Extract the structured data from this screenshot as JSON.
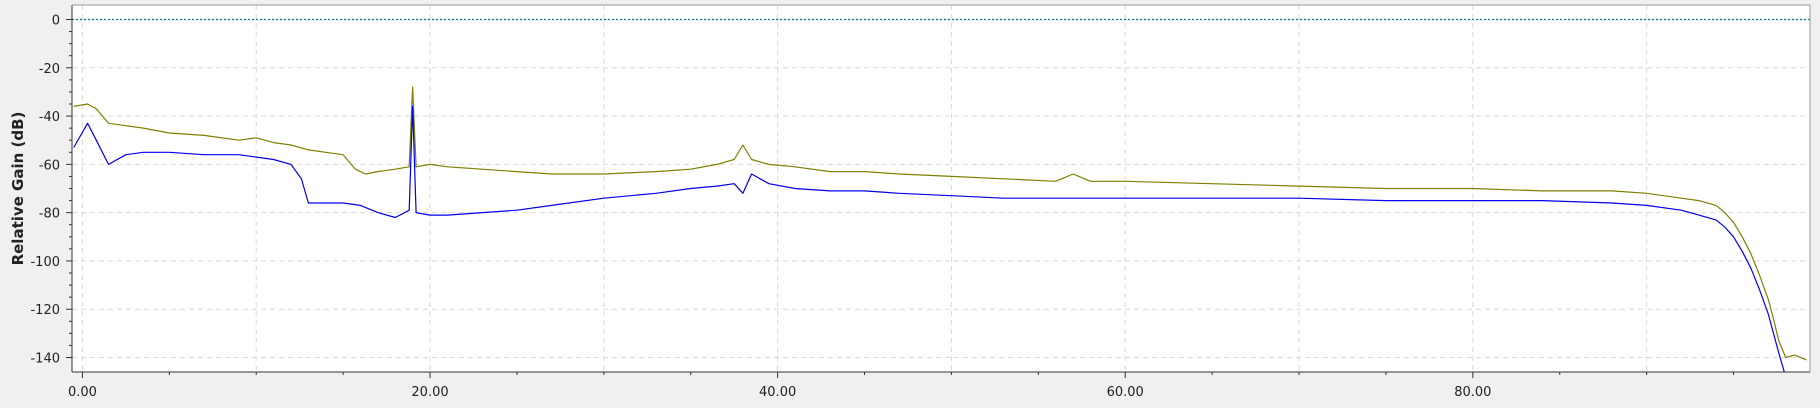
{
  "colors": {
    "background": "#f0f0f0",
    "plot_background": "#ffffff",
    "grid": "#d9d9d9",
    "series_blue": "#0000ee",
    "series_olive": "#7f7f00",
    "reference_line": "#008080"
  },
  "chart_data": {
    "type": "line",
    "title": "",
    "xlabel": "",
    "ylabel": "Relative Gain (dB)",
    "xlim": [
      -0.6,
      99.4
    ],
    "ylim": [
      -146,
      6
    ],
    "grid": true,
    "legend": "none",
    "x_ticks": [
      0,
      20,
      40,
      60,
      80
    ],
    "x_tick_labels": [
      "0.00",
      "20.00",
      "40.00",
      "60.00",
      "80.00"
    ],
    "y_ticks": [
      0,
      -20,
      -40,
      -60,
      -80,
      -100,
      -120,
      -140
    ],
    "y_tick_labels": [
      "0",
      "-20",
      "-40",
      "-60",
      "-80",
      "-100",
      "-120",
      "-140"
    ],
    "reference_line": {
      "y": 0
    },
    "series": [
      {
        "color_key": "series_olive",
        "x": [
          -0.5,
          0.3,
          0.8,
          1.5,
          2.5,
          3.5,
          5,
          7,
          9,
          10,
          11,
          12,
          13,
          14,
          15,
          15.7,
          16.3,
          17,
          18,
          18.8,
          19.0,
          19.2,
          20,
          21,
          23,
          25,
          27,
          30,
          33,
          35,
          36.5,
          37.5,
          38.0,
          38.5,
          39.5,
          41,
          43,
          45,
          47,
          50,
          53,
          56,
          57,
          58,
          60,
          65,
          70,
          75,
          80,
          84,
          88,
          90,
          92,
          93,
          94,
          94.5,
          95,
          95.5,
          96,
          96.5,
          97,
          97.3,
          97.6,
          98,
          98.5,
          99.2
        ],
        "y": [
          -36,
          -35,
          -37,
          -43,
          -44,
          -45,
          -47,
          -48,
          -50,
          -49,
          -51,
          -52,
          -54,
          -55,
          -56,
          -62,
          -64,
          -63,
          -62,
          -61,
          -28,
          -61,
          -60,
          -61,
          -62,
          -63,
          -64,
          -64,
          -63,
          -62,
          -60,
          -58,
          -52,
          -58,
          -60,
          -61,
          -63,
          -63,
          -64,
          -65,
          -66,
          -67,
          -64,
          -67,
          -67,
          -68,
          -69,
          -70,
          -70,
          -71,
          -71,
          -72,
          -74,
          -75,
          -77,
          -80,
          -84,
          -90,
          -97,
          -106,
          -116,
          -124,
          -133,
          -140,
          -139,
          -141
        ]
      },
      {
        "color_key": "series_blue",
        "x": [
          -0.5,
          0.3,
          0.8,
          1.5,
          2.5,
          3.5,
          5,
          7,
          9,
          10,
          11,
          12,
          12.6,
          13,
          14,
          15,
          16,
          17,
          18,
          18.8,
          19.0,
          19.2,
          20,
          21,
          23,
          25,
          27,
          30,
          33,
          35,
          36.5,
          37.5,
          38.0,
          38.5,
          39.5,
          41,
          43,
          45,
          47,
          50,
          53,
          56,
          60,
          65,
          70,
          75,
          80,
          84,
          88,
          90,
          92,
          93,
          94,
          94.5,
          95,
          95.5,
          96,
          96.5,
          97,
          97.3,
          97.6,
          98,
          98.5
        ],
        "y": [
          -53,
          -43,
          -50,
          -60,
          -56,
          -55,
          -55,
          -56,
          -56,
          -57,
          -58,
          -60,
          -66,
          -76,
          -76,
          -76,
          -77,
          -80,
          -82,
          -79,
          -36,
          -80,
          -81,
          -81,
          -80,
          -79,
          -77,
          -74,
          -72,
          -70,
          -69,
          -68,
          -72,
          -64,
          -68,
          -70,
          -71,
          -71,
          -72,
          -73,
          -74,
          -74,
          -74,
          -74,
          -74,
          -75,
          -75,
          -75,
          -76,
          -77,
          -79,
          -81,
          -83,
          -86,
          -90,
          -96,
          -103,
          -112,
          -122,
          -130,
          -138,
          -148,
          -146
        ]
      }
    ]
  }
}
